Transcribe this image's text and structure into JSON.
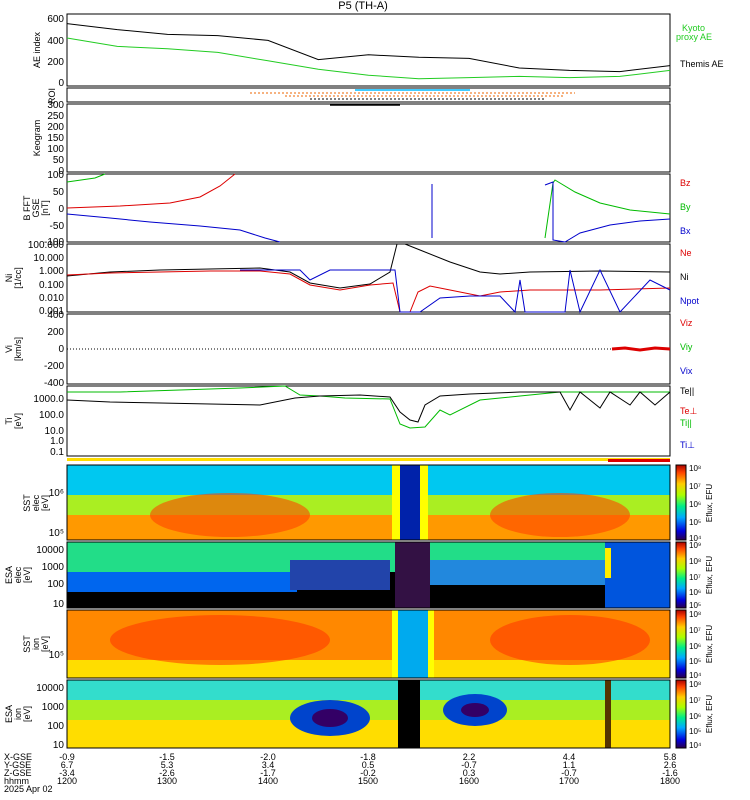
{
  "title": "P5  (TH-A)",
  "date_label": "2025 Apr 02",
  "colors": {
    "ae_kyoto": "#22cc22",
    "ae_themis": "#000000",
    "bz": "#dd0000",
    "by": "#00bb00",
    "bx": "#0000cc",
    "ne": "#dd0000",
    "ni": "#000000",
    "npot": "#0000cc",
    "red_bar": "#dd0000",
    "yellow_bar": "#ffdd00",
    "roi_cyan": "#00bbff",
    "roi_orange": "#ee6600"
  },
  "time_axis": {
    "ticks": [
      "1200",
      "1300",
      "1400",
      "1500",
      "1600",
      "1700",
      "1800"
    ],
    "row_labels": [
      "X-GSE",
      "Y-GSE",
      "Z-GSE",
      "hhmm"
    ],
    "x_gse": [
      "-0.9",
      "-1.5",
      "-2.0",
      "-1.8",
      "2.2",
      "4.4",
      "5.8"
    ],
    "y_gse": [
      "6.7",
      "5.3",
      "3.4",
      "0.5",
      "-0.7",
      "1.1",
      "2.6"
    ],
    "z_gse": [
      "-3.4",
      "-2.6",
      "-1.7",
      "-0.2",
      "0.3",
      "-0.7",
      "-1.6"
    ]
  },
  "panels": {
    "ae": {
      "ylabel": "AE index",
      "ticks": [
        "600",
        "400",
        "200",
        "0"
      ],
      "legend_kyoto": [
        "Kyoto",
        "proxy AE"
      ],
      "legend_themis": "Themis AE"
    },
    "roi": {
      "ylabel": "ROI"
    },
    "keogram": {
      "ylabel": "Keogram",
      "ticks": [
        "300",
        "250",
        "200",
        "150",
        "100",
        "50",
        "0"
      ]
    },
    "b": {
      "ylabel": [
        "B FFT",
        "GSE",
        "[nT]"
      ],
      "ticks": [
        "100",
        "50",
        "0",
        "-50",
        "-100"
      ],
      "legend": [
        "Bz",
        "By",
        "Bx"
      ]
    },
    "density": {
      "ylabel": [
        "Ni",
        "[1/cc]"
      ],
      "ticks": [
        "100.000",
        "10.000",
        "1.000",
        "0.100",
        "0.010",
        "0.001"
      ],
      "legend": [
        "Ne",
        "Ni",
        "Npot"
      ]
    },
    "velocity": {
      "ylabel": [
        "Vi",
        "[km/s]"
      ],
      "ticks": [
        "400",
        "200",
        "0",
        "-200",
        "-400"
      ],
      "legend": [
        "Viz",
        "Viy",
        "Vix"
      ]
    },
    "temperature": {
      "ylabel": [
        "Ti",
        "[eV]"
      ],
      "ticks": [
        "1000.0",
        "100.0",
        "10.0",
        "1.0",
        "0.1"
      ],
      "legend": [
        "Te||",
        "Te⊥",
        "Ti||",
        "Ti⊥"
      ]
    },
    "sst_e": {
      "ylabel": [
        "SST",
        "elec",
        "[eV]"
      ],
      "ticks": [
        "10⁶",
        "10⁵"
      ]
    },
    "esa_e": {
      "ylabel": [
        "ESA",
        "elec",
        "[eV]"
      ],
      "ticks": [
        "10000",
        "1000",
        "100",
        "10"
      ]
    },
    "sst_i": {
      "ylabel": [
        "SST",
        "ion",
        "[eV]"
      ],
      "ticks": [
        "10⁵"
      ]
    },
    "esa_i": {
      "ylabel": [
        "ESA",
        "ion",
        "[eV]"
      ],
      "ticks": [
        "10000",
        "1000",
        "100",
        "10"
      ]
    }
  },
  "colorbars": [
    {
      "label": "Eflux, EFU",
      "ticks": [
        "10⁸",
        "10⁷",
        "10⁶",
        "10⁵",
        "10⁴"
      ]
    },
    {
      "label": "Eflux, EFU",
      "ticks": [
        "10⁹",
        "10⁸",
        "10⁷",
        "10⁶",
        "10⁵"
      ]
    },
    {
      "label": "Eflux, EFU",
      "ticks": [
        "10⁸",
        "10⁷",
        "10⁶",
        "10⁵",
        "10⁴"
      ]
    },
    {
      "label": "Eflux, EFU",
      "ticks": [
        "10⁸",
        "10⁷",
        "10⁶",
        "10⁵",
        "10⁴"
      ]
    }
  ],
  "chart_data": {
    "type": "line",
    "title": "P5  (TH-A)",
    "x": [
      "1200",
      "1230",
      "1300",
      "1330",
      "1400",
      "1430",
      "1500",
      "1530",
      "1600",
      "1630",
      "1700",
      "1730",
      "1800"
    ],
    "series": [
      {
        "name": "Themis AE",
        "values": [
          520,
          470,
          430,
          420,
          380,
          220,
          260,
          240,
          230,
          150,
          130,
          120,
          170
        ]
      },
      {
        "name": "Kyoto proxy AE",
        "values": [
          400,
          330,
          310,
          280,
          210,
          140,
          90,
          60,
          70,
          80,
          70,
          80,
          130
        ]
      }
    ],
    "ylim": [
      0,
      600
    ]
  }
}
